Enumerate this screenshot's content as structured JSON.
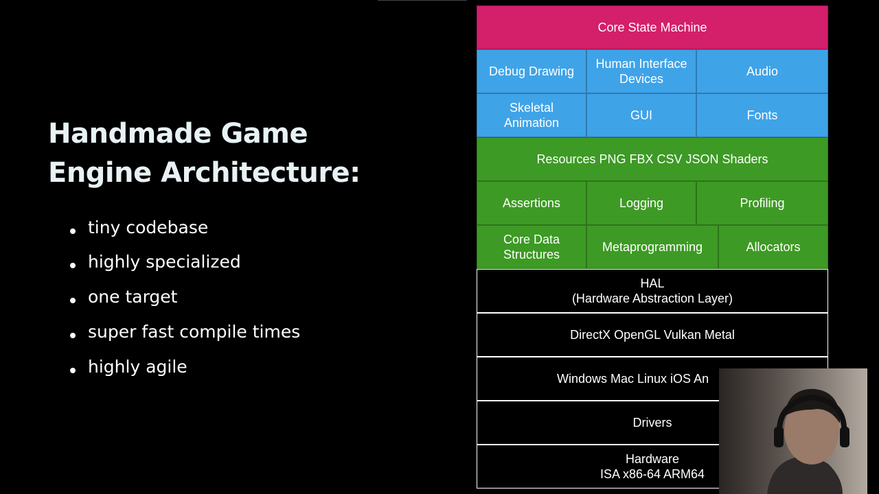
{
  "slide": {
    "title": [
      "Handmade Game",
      "Engine Architecture:"
    ],
    "bullets": [
      "tiny codebase",
      "highly specialized",
      "one target",
      "super fast compile times",
      "highly agile"
    ]
  },
  "diagram": {
    "rows": [
      {
        "color": "#d41f6b",
        "cells": [
          "Core State Machine"
        ]
      },
      {
        "color": "#3fa3e8",
        "cells": [
          "Debug Drawing",
          "Human Interface\nDevices",
          "Audio"
        ]
      },
      {
        "color": "#3fa3e8",
        "cells": [
          "Skeletal\nAnimation",
          "GUI",
          "Fonts"
        ]
      },
      {
        "color": "#3d9a24",
        "cells": [
          "Resources PNG FBX CSV JSON Shaders"
        ]
      },
      {
        "color": "#3d9a24",
        "cells": [
          "Assertions",
          "Logging",
          "Profiling"
        ]
      },
      {
        "color": "#3d9a24",
        "cells": [
          "Core Data\nStructures",
          "Metaprogramming",
          "Allocators"
        ]
      },
      {
        "color": "#000000",
        "cells": [
          "HAL\n(Hardware Abstraction Layer)"
        ]
      },
      {
        "color": "#000000",
        "cells": [
          "DirectX OpenGL Vulkan Metal"
        ]
      },
      {
        "color": "#000000",
        "cells": [
          "Windows Mac Linux iOS An"
        ]
      },
      {
        "color": "#000000",
        "cells": [
          "Drivers"
        ]
      },
      {
        "color": "#000000",
        "cells": [
          "Hardware\nISA x86-64 ARM64"
        ]
      }
    ]
  }
}
